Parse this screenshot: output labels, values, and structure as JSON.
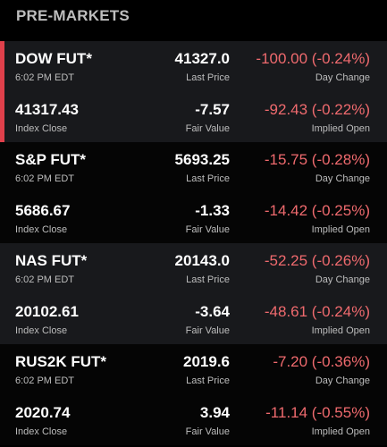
{
  "header": {
    "title": "PRE-MARKETS"
  },
  "colors": {
    "negative": "#ef6a6e",
    "accent": "#e0404b"
  },
  "labels": {
    "last_price": "Last Price",
    "day_change": "Day Change",
    "index_close": "Index Close",
    "fair_value": "Fair Value",
    "implied_open": "Implied Open"
  },
  "futures": [
    {
      "name": "DOW FUT*",
      "time": "6:02 PM EDT",
      "last_price": "41327.0",
      "day_change": "-100.00 (-0.24%)",
      "index_close": "41317.43",
      "fair_value": "-7.57",
      "implied_open": "-92.43 (-0.22%)"
    },
    {
      "name": "S&P FUT*",
      "time": "6:02 PM EDT",
      "last_price": "5693.25",
      "day_change": "-15.75 (-0.28%)",
      "index_close": "5686.67",
      "fair_value": "-1.33",
      "implied_open": "-14.42 (-0.25%)"
    },
    {
      "name": "NAS FUT*",
      "time": "6:02 PM EDT",
      "last_price": "20143.0",
      "day_change": "-52.25 (-0.26%)",
      "index_close": "20102.61",
      "fair_value": "-3.64",
      "implied_open": "-48.61 (-0.24%)"
    },
    {
      "name": "RUS2K FUT*",
      "time": "6:02 PM EDT",
      "last_price": "2019.6",
      "day_change": "-7.20 (-0.36%)",
      "index_close": "2020.74",
      "fair_value": "3.94",
      "implied_open": "-11.14 (-0.55%)"
    }
  ]
}
